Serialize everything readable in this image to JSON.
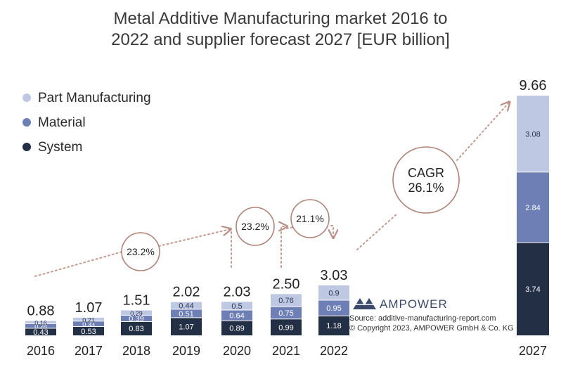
{
  "chart_data": {
    "type": "bar",
    "stacked": true,
    "title": "Metal Additive Manufacturing market 2016 to 2022 and supplier forecast 2027 [EUR billion]",
    "categories": [
      "2016",
      "2017",
      "2018",
      "2019",
      "2020",
      "2021",
      "2022",
      "2027"
    ],
    "series": [
      {
        "name": "System",
        "color": "#232f45",
        "values": [
          0.43,
          0.53,
          0.83,
          1.07,
          0.89,
          0.99,
          1.18,
          3.74
        ]
      },
      {
        "name": "Material",
        "color": "#6d7fb4",
        "values": [
          0.28,
          0.33,
          0.39,
          0.51,
          0.64,
          0.75,
          0.95,
          2.84
        ]
      },
      {
        "name": "Part Manufacturing",
        "color": "#bfc8e2",
        "values": [
          0.16,
          0.21,
          0.29,
          0.44,
          0.5,
          0.76,
          0.9,
          3.08
        ]
      }
    ],
    "totals": [
      "0.88",
      "1.07",
      "1.51",
      "2.02",
      "2.03",
      "2.50",
      "3.03",
      "9.66"
    ],
    "legend": [
      "Part Manufacturing",
      "Material",
      "System"
    ],
    "legend_position": "top-left",
    "annotations": [
      "23.2%",
      "23.2%",
      "21.1%",
      "CAGR\n26.1%"
    ],
    "brand": "AMPOWER",
    "source": "Source: additive-manufacturing-report.com",
    "copyright": "© Copyright 2023, AMPOWER GmbH & Co. KG",
    "grid": false
  }
}
